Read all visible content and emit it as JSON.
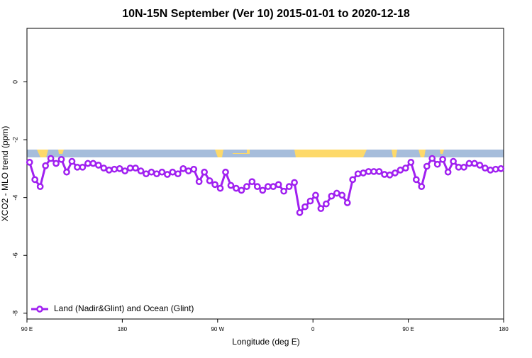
{
  "chart_data": {
    "type": "line",
    "title": "10N-15N September (Ver 10)   2015-01-01 to 2020-12-18",
    "xlabel": "Longitude (deg E)",
    "ylabel": "XCO2 - MLO trend (ppm)",
    "xlim": [
      90,
      540
    ],
    "ylim": [
      -8.2,
      1.85
    ],
    "xticks": [
      {
        "value": 90,
        "label": "90 E"
      },
      180,
      {
        "value": 270,
        "label": "90 W"
      },
      {
        "value": 360,
        "label": "0"
      },
      {
        "value": 450,
        "label": "90 E"
      },
      {
        "value": 540,
        "label": "180"
      }
    ],
    "yticks": [
      0,
      -2,
      -4,
      -6,
      -8
    ],
    "legend": "bottom-left",
    "x": [
      92.5,
      97.5,
      102.5,
      107.5,
      112.5,
      117.5,
      122.5,
      127.5,
      132.5,
      137.5,
      142.5,
      147.5,
      152.5,
      157.5,
      162.5,
      167.5,
      172.5,
      177.5,
      182.5,
      187.5,
      192.5,
      197.5,
      202.5,
      207.5,
      212.5,
      217.5,
      222.5,
      227.5,
      232.5,
      237.5,
      242.5,
      247.5,
      252.5,
      257.5,
      262.5,
      267.5,
      272.5,
      277.5,
      282.5,
      287.5,
      292.5,
      297.5,
      302.5,
      307.5,
      312.5,
      317.5,
      322.5,
      327.5,
      332.5,
      337.5,
      342.5,
      347.5,
      352.5,
      357.5,
      362.5,
      367.5,
      372.5,
      377.5,
      382.5,
      387.5,
      392.5,
      397.5,
      402.5,
      407.5,
      412.5,
      417.5,
      422.5,
      427.5,
      432.5,
      437.5,
      442.5,
      447.5,
      452.5,
      457.5,
      462.5,
      467.5,
      472.5,
      477.5,
      482.5,
      487.5,
      492.5,
      497.5,
      502.5,
      507.5,
      512.5,
      517.5,
      522.5,
      527.5,
      532.5,
      537.5
    ],
    "series": [
      {
        "name": "Land (Nadir&Glint) and Ocean (Glint)",
        "color": "#a020f0",
        "values": [
          -2.78,
          -3.38,
          -3.62,
          -2.9,
          -2.65,
          -2.82,
          -2.68,
          -3.12,
          -2.75,
          -2.95,
          -2.95,
          -2.82,
          -2.82,
          -2.88,
          -2.98,
          -3.05,
          -3.02,
          -3.0,
          -3.08,
          -2.98,
          -2.98,
          -3.08,
          -3.18,
          -3.12,
          -3.18,
          -3.12,
          -3.2,
          -3.12,
          -3.18,
          -3.0,
          -3.08,
          -3.02,
          -3.45,
          -3.12,
          -3.42,
          -3.55,
          -3.68,
          -3.12,
          -3.58,
          -3.68,
          -3.75,
          -3.62,
          -3.45,
          -3.62,
          -3.75,
          -3.62,
          -3.62,
          -3.55,
          -3.78,
          -3.62,
          -3.48,
          -4.52,
          -4.32,
          -4.12,
          -3.92,
          -4.38,
          -4.22,
          -3.95,
          -3.85,
          -3.92,
          -4.18,
          -3.38,
          -3.18,
          -3.15,
          -3.1,
          -3.1,
          -3.1,
          -3.2,
          -3.22,
          -3.15,
          -3.05,
          -2.98,
          -2.78,
          -3.38,
          -3.62,
          -2.92,
          -2.65,
          -2.85,
          -2.68,
          -3.12,
          -2.75,
          -2.95,
          -2.95,
          -2.82,
          -2.82,
          -2.88,
          -2.98,
          -3.05,
          -3.02,
          -3.0
        ]
      }
    ]
  }
}
